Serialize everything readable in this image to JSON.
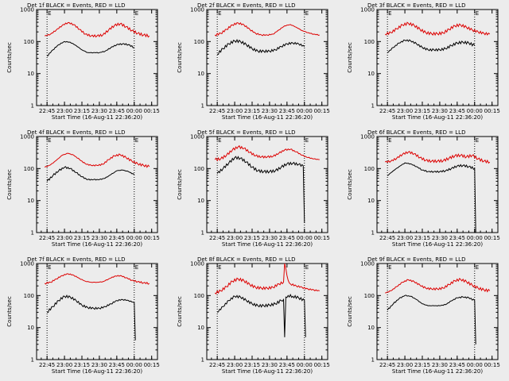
{
  "figure": {
    "background": "#ececec"
  },
  "chart_data": [
    {
      "type": "line",
      "title": "Det 1f BLACK = Events, RED = LLD",
      "xlabel": "Start Time (16-Aug-11 22:36:20)",
      "ylabel": "Counts/sec",
      "yscale": "log",
      "ylim": [
        1,
        1000
      ],
      "yticks": [
        "1",
        "10",
        "100",
        "1000"
      ],
      "xticks": [
        "22:45",
        "23:00",
        "23:15",
        "23:30",
        "23:45",
        "00:00",
        "00:15"
      ],
      "marker_labels": [
        "E",
        "E"
      ],
      "marker_lines": [
        "22:45",
        "00:00"
      ],
      "series": [
        {
          "color": "#dd0000",
          "x": [
            "22:43",
            "22:48",
            "22:53",
            "22:58",
            "23:03",
            "23:08",
            "23:13",
            "23:18",
            "23:23",
            "23:28",
            "23:33",
            "23:38",
            "23:43",
            "23:48",
            "23:53",
            "23:58",
            "00:03",
            "00:08",
            "00:13"
          ],
          "y": [
            150,
            170,
            230,
            320,
            390,
            340,
            240,
            170,
            150,
            150,
            160,
            230,
            320,
            360,
            290,
            220,
            180,
            160,
            150
          ]
        },
        {
          "color": "#000000",
          "x": [
            "22:45",
            "22:50",
            "22:55",
            "23:00",
            "23:05",
            "23:10",
            "23:15",
            "23:20",
            "23:25",
            "23:30",
            "23:35",
            "23:40",
            "23:45",
            "23:50",
            "23:55",
            "00:00"
          ],
          "y": [
            35,
            55,
            80,
            100,
            95,
            75,
            55,
            45,
            45,
            45,
            50,
            65,
            80,
            85,
            80,
            65
          ]
        }
      ]
    },
    {
      "type": "line",
      "title": "Det 2f BLACK = Events, RED = LLD",
      "xlabel": "Start Time (16-Aug-11 22:36:20)",
      "ylabel": "Counts/sec",
      "yscale": "log",
      "ylim": [
        1,
        1000
      ],
      "yticks": [
        "1",
        "10",
        "100",
        "1000"
      ],
      "xticks": [
        "22:45",
        "23:00",
        "23:15",
        "23:30",
        "23:45",
        "00:00",
        "00:15"
      ],
      "marker_labels": [
        "E",
        "E"
      ],
      "marker_lines": [
        "22:45",
        "00:00"
      ],
      "series": [
        {
          "color": "#dd0000",
          "x": [
            "22:43",
            "22:48",
            "22:53",
            "22:58",
            "23:03",
            "23:08",
            "23:13",
            "23:18",
            "23:23",
            "23:28",
            "23:33",
            "23:38",
            "23:43",
            "23:48",
            "23:53",
            "23:58",
            "00:03",
            "00:08",
            "00:13"
          ],
          "y": [
            160,
            180,
            240,
            330,
            380,
            330,
            240,
            180,
            160,
            160,
            170,
            230,
            310,
            340,
            280,
            220,
            190,
            170,
            160
          ]
        },
        {
          "color": "#000000",
          "x": [
            "22:45",
            "22:50",
            "22:55",
            "23:00",
            "23:05",
            "23:10",
            "23:15",
            "23:20",
            "23:25",
            "23:30",
            "23:35",
            "23:40",
            "23:45",
            "23:50",
            "23:55",
            "00:00"
          ],
          "y": [
            40,
            60,
            85,
            105,
            100,
            80,
            60,
            50,
            50,
            50,
            55,
            70,
            85,
            90,
            85,
            70
          ]
        }
      ]
    },
    {
      "type": "line",
      "title": "Det 3f BLACK = Events, RED = LLD",
      "xlabel": "Start Time (16-Aug-11 22:36:20)",
      "ylabel": "Counts/sec",
      "yscale": "log",
      "ylim": [
        1,
        1000
      ],
      "yticks": [
        "1",
        "10",
        "100",
        "1000"
      ],
      "xticks": [
        "22:45",
        "23:00",
        "23:15",
        "23:30",
        "23:45",
        "00:00",
        "00:15"
      ],
      "marker_labels": [
        "E",
        "E"
      ],
      "marker_lines": [
        "22:45",
        "00:00"
      ],
      "series": [
        {
          "color": "#dd0000",
          "x": [
            "22:43",
            "22:48",
            "22:53",
            "22:58",
            "23:03",
            "23:08",
            "23:13",
            "23:18",
            "23:23",
            "23:28",
            "23:33",
            "23:38",
            "23:43",
            "23:48",
            "23:53",
            "23:58",
            "00:03",
            "00:08",
            "00:13"
          ],
          "y": [
            170,
            190,
            250,
            330,
            370,
            320,
            240,
            190,
            175,
            175,
            185,
            240,
            310,
            330,
            280,
            230,
            200,
            180,
            170
          ]
        },
        {
          "color": "#000000",
          "x": [
            "22:45",
            "22:50",
            "22:55",
            "23:00",
            "23:05",
            "23:10",
            "23:15",
            "23:20",
            "23:25",
            "23:30",
            "23:35",
            "23:40",
            "23:45",
            "23:50",
            "23:55",
            "00:00"
          ],
          "y": [
            45,
            65,
            90,
            110,
            105,
            85,
            65,
            55,
            55,
            55,
            60,
            75,
            90,
            95,
            90,
            75
          ]
        }
      ]
    },
    {
      "type": "line",
      "title": "Det 4f BLACK = Events, RED = LLD",
      "xlabel": "Start Time (16-Aug-11 22:36:20)",
      "ylabel": "Counts/sec",
      "yscale": "log",
      "ylim": [
        1,
        1000
      ],
      "yticks": [
        "1",
        "10",
        "100",
        "1000"
      ],
      "xticks": [
        "22:45",
        "23:00",
        "23:15",
        "23:30",
        "23:45",
        "00:00",
        "00:15"
      ],
      "marker_labels": [
        "E",
        "E"
      ],
      "marker_lines": [
        "22:45",
        "00:00"
      ],
      "series": [
        {
          "color": "#dd0000",
          "x": [
            "22:43",
            "22:48",
            "22:53",
            "22:58",
            "23:03",
            "23:08",
            "23:13",
            "23:18",
            "23:23",
            "23:28",
            "23:33",
            "23:38",
            "23:43",
            "23:48",
            "23:53",
            "23:58",
            "00:03",
            "00:08",
            "00:13"
          ],
          "y": [
            110,
            130,
            180,
            260,
            300,
            260,
            190,
            140,
            125,
            125,
            135,
            190,
            250,
            270,
            220,
            170,
            140,
            125,
            115
          ]
        },
        {
          "color": "#000000",
          "x": [
            "22:45",
            "22:50",
            "22:55",
            "23:00",
            "23:05",
            "23:10",
            "23:15",
            "23:20",
            "23:25",
            "23:30",
            "23:35",
            "23:40",
            "23:45",
            "23:50",
            "23:55",
            "00:00"
          ],
          "y": [
            40,
            60,
            85,
            110,
            100,
            75,
            55,
            45,
            45,
            45,
            50,
            65,
            85,
            90,
            80,
            65
          ]
        }
      ]
    },
    {
      "type": "line",
      "title": "Det 5f BLACK = Events, RED = LLD",
      "xlabel": "Start Time (16-Aug-11 22:36:20)",
      "ylabel": "Counts/sec",
      "yscale": "log",
      "ylim": [
        1,
        1000
      ],
      "yticks": [
        "1",
        "10",
        "100",
        "1000"
      ],
      "xticks": [
        "22:45",
        "23:00",
        "23:15",
        "23:30",
        "23:45",
        "00:00",
        "00:15"
      ],
      "marker_labels": [
        "E",
        "E"
      ],
      "marker_lines": [
        "22:45",
        "00:00"
      ],
      "series": [
        {
          "color": "#dd0000",
          "x": [
            "22:43",
            "22:48",
            "22:53",
            "22:58",
            "23:03",
            "23:08",
            "23:13",
            "23:18",
            "23:23",
            "23:28",
            "23:33",
            "23:38",
            "23:43",
            "23:48",
            "23:53",
            "23:58",
            "00:03",
            "00:08",
            "00:13"
          ],
          "y": [
            190,
            200,
            260,
            380,
            480,
            430,
            320,
            250,
            230,
            230,
            240,
            300,
            380,
            400,
            330,
            260,
            220,
            200,
            190
          ]
        },
        {
          "color": "#000000",
          "x": [
            "22:45",
            "22:50",
            "22:55",
            "23:00",
            "23:05",
            "23:10",
            "23:15",
            "23:20",
            "23:25",
            "23:30",
            "23:35",
            "23:40",
            "23:45",
            "23:50",
            "23:55",
            "23:59",
            "00:00"
          ],
          "y": [
            70,
            100,
            150,
            220,
            210,
            160,
            110,
            85,
            80,
            80,
            85,
            110,
            140,
            145,
            135,
            120,
            2
          ]
        }
      ]
    },
    {
      "type": "line",
      "title": "Det 6f BLACK = Events, RED = LLD",
      "xlabel": "Start Time (16-Aug-11 22:36:20)",
      "ylabel": "Counts/sec",
      "yscale": "log",
      "ylim": [
        1,
        1000
      ],
      "yticks": [
        "1",
        "10",
        "100",
        "1000"
      ],
      "xticks": [
        "22:45",
        "23:00",
        "23:15",
        "23:30",
        "23:45",
        "00:00",
        "00:15"
      ],
      "marker_labels": [
        "E",
        "E"
      ],
      "marker_lines": [
        "22:45",
        "00:00"
      ],
      "series": [
        {
          "color": "#dd0000",
          "x": [
            "22:43",
            "22:48",
            "22:53",
            "22:58",
            "23:03",
            "23:08",
            "23:13",
            "23:18",
            "23:23",
            "23:28",
            "23:33",
            "23:38",
            "23:43",
            "23:48",
            "23:53",
            "23:58",
            "00:03",
            "00:08",
            "00:13"
          ],
          "y": [
            160,
            170,
            210,
            280,
            330,
            290,
            220,
            180,
            170,
            170,
            175,
            210,
            250,
            260,
            230,
            260,
            200,
            170,
            160
          ]
        },
        {
          "color": "#000000",
          "x": [
            "22:45",
            "22:50",
            "22:55",
            "23:00",
            "23:05",
            "23:10",
            "23:15",
            "23:20",
            "23:25",
            "23:30",
            "23:35",
            "23:40",
            "23:45",
            "23:50",
            "23:55",
            "00:00",
            "00:01"
          ],
          "y": [
            60,
            85,
            115,
            150,
            140,
            115,
            90,
            80,
            80,
            80,
            85,
            100,
            120,
            125,
            115,
            100,
            1
          ]
        }
      ]
    },
    {
      "type": "line",
      "title": "Det 7f BLACK = Events, RED = LLD",
      "xlabel": "Start Time (16-Aug-11 22:36:20)",
      "ylabel": "Counts/sec",
      "yscale": "log",
      "ylim": [
        1,
        1000
      ],
      "yticks": [
        "1",
        "10",
        "100",
        "1000"
      ],
      "xticks": [
        "22:45",
        "23:00",
        "23:15",
        "23:30",
        "23:45",
        "00:00",
        "00:15"
      ],
      "marker_labels": [
        "E",
        "E"
      ],
      "marker_lines": [
        "22:45",
        "00:00"
      ],
      "series": [
        {
          "color": "#dd0000",
          "x": [
            "22:43",
            "22:48",
            "22:53",
            "22:58",
            "23:03",
            "23:08",
            "23:13",
            "23:18",
            "23:23",
            "23:28",
            "23:33",
            "23:38",
            "23:43",
            "23:48",
            "23:53",
            "23:58",
            "00:03",
            "00:08",
            "00:13"
          ],
          "y": [
            240,
            260,
            330,
            420,
            480,
            430,
            340,
            280,
            260,
            260,
            270,
            330,
            400,
            420,
            360,
            300,
            270,
            250,
            240
          ]
        },
        {
          "color": "#000000",
          "x": [
            "22:45",
            "22:50",
            "22:55",
            "23:00",
            "23:05",
            "23:10",
            "23:15",
            "23:20",
            "23:25",
            "23:30",
            "23:35",
            "23:40",
            "23:45",
            "23:50",
            "23:55",
            "00:00",
            "00:01"
          ],
          "y": [
            30,
            45,
            70,
            95,
            90,
            70,
            50,
            42,
            40,
            40,
            45,
            55,
            70,
            75,
            70,
            60,
            4
          ]
        }
      ]
    },
    {
      "type": "line",
      "title": "Det 8f BLACK = Events, RED = LLD",
      "xlabel": "Start Time (16-Aug-11 22:36:20)",
      "ylabel": "Counts/sec",
      "yscale": "log",
      "ylim": [
        1,
        1000
      ],
      "yticks": [
        "1",
        "10",
        "100",
        "1000"
      ],
      "xticks": [
        "22:45",
        "23:00",
        "23:15",
        "23:30",
        "23:45",
        "00:00",
        "00:15"
      ],
      "marker_labels": [
        "E",
        "E"
      ],
      "marker_lines": [
        "22:45",
        "00:00"
      ],
      "series": [
        {
          "color": "#dd0000",
          "x": [
            "22:43",
            "22:48",
            "22:53",
            "22:58",
            "23:03",
            "23:08",
            "23:13",
            "23:18",
            "23:23",
            "23:28",
            "23:33",
            "23:38",
            "23:42",
            "23:43",
            "23:44",
            "23:46",
            "23:48",
            "23:53",
            "23:58",
            "00:03",
            "00:08",
            "00:13"
          ],
          "y": [
            120,
            140,
            190,
            280,
            330,
            290,
            220,
            180,
            170,
            170,
            180,
            230,
            260,
            1000,
            700,
            300,
            230,
            200,
            180,
            160,
            150,
            140
          ]
        },
        {
          "color": "#000000",
          "x": [
            "22:45",
            "22:50",
            "22:55",
            "23:00",
            "23:05",
            "23:10",
            "23:15",
            "23:20",
            "23:25",
            "23:30",
            "23:35",
            "23:40",
            "23:42",
            "23:43",
            "23:44",
            "23:46",
            "23:50",
            "23:55",
            "00:00",
            "00:01"
          ],
          "y": [
            30,
            45,
            70,
            95,
            90,
            70,
            55,
            48,
            48,
            50,
            55,
            70,
            75,
            5,
            90,
            100,
            95,
            85,
            70,
            5
          ]
        }
      ]
    },
    {
      "type": "line",
      "title": "Det 9f BLACK = Events, RED = LLD",
      "xlabel": "Start Time (16-Aug-11 22:36:20)",
      "ylabel": "Counts/sec",
      "yscale": "log",
      "ylim": [
        1,
        1000
      ],
      "yticks": [
        "1",
        "10",
        "100",
        "1000"
      ],
      "xticks": [
        "22:45",
        "23:00",
        "23:15",
        "23:30",
        "23:45",
        "00:00",
        "00:15"
      ],
      "marker_labels": [
        "E",
        "E"
      ],
      "marker_lines": [
        "22:45",
        "00:00"
      ],
      "series": [
        {
          "color": "#dd0000",
          "x": [
            "22:43",
            "22:48",
            "22:53",
            "22:58",
            "23:03",
            "23:08",
            "23:13",
            "23:18",
            "23:23",
            "23:28",
            "23:33",
            "23:38",
            "23:43",
            "23:48",
            "23:53",
            "23:58",
            "00:03",
            "00:08",
            "00:13"
          ],
          "y": [
            120,
            140,
            190,
            260,
            310,
            270,
            210,
            170,
            160,
            160,
            170,
            220,
            290,
            320,
            270,
            210,
            170,
            150,
            140
          ]
        },
        {
          "color": "#000000",
          "x": [
            "22:45",
            "22:50",
            "22:55",
            "23:00",
            "23:05",
            "23:10",
            "23:15",
            "23:20",
            "23:25",
            "23:30",
            "23:35",
            "23:40",
            "23:45",
            "23:50",
            "23:55",
            "00:00",
            "00:01"
          ],
          "y": [
            35,
            55,
            80,
            100,
            95,
            75,
            55,
            48,
            48,
            48,
            52,
            68,
            85,
            90,
            85,
            70,
            3
          ]
        }
      ]
    }
  ]
}
